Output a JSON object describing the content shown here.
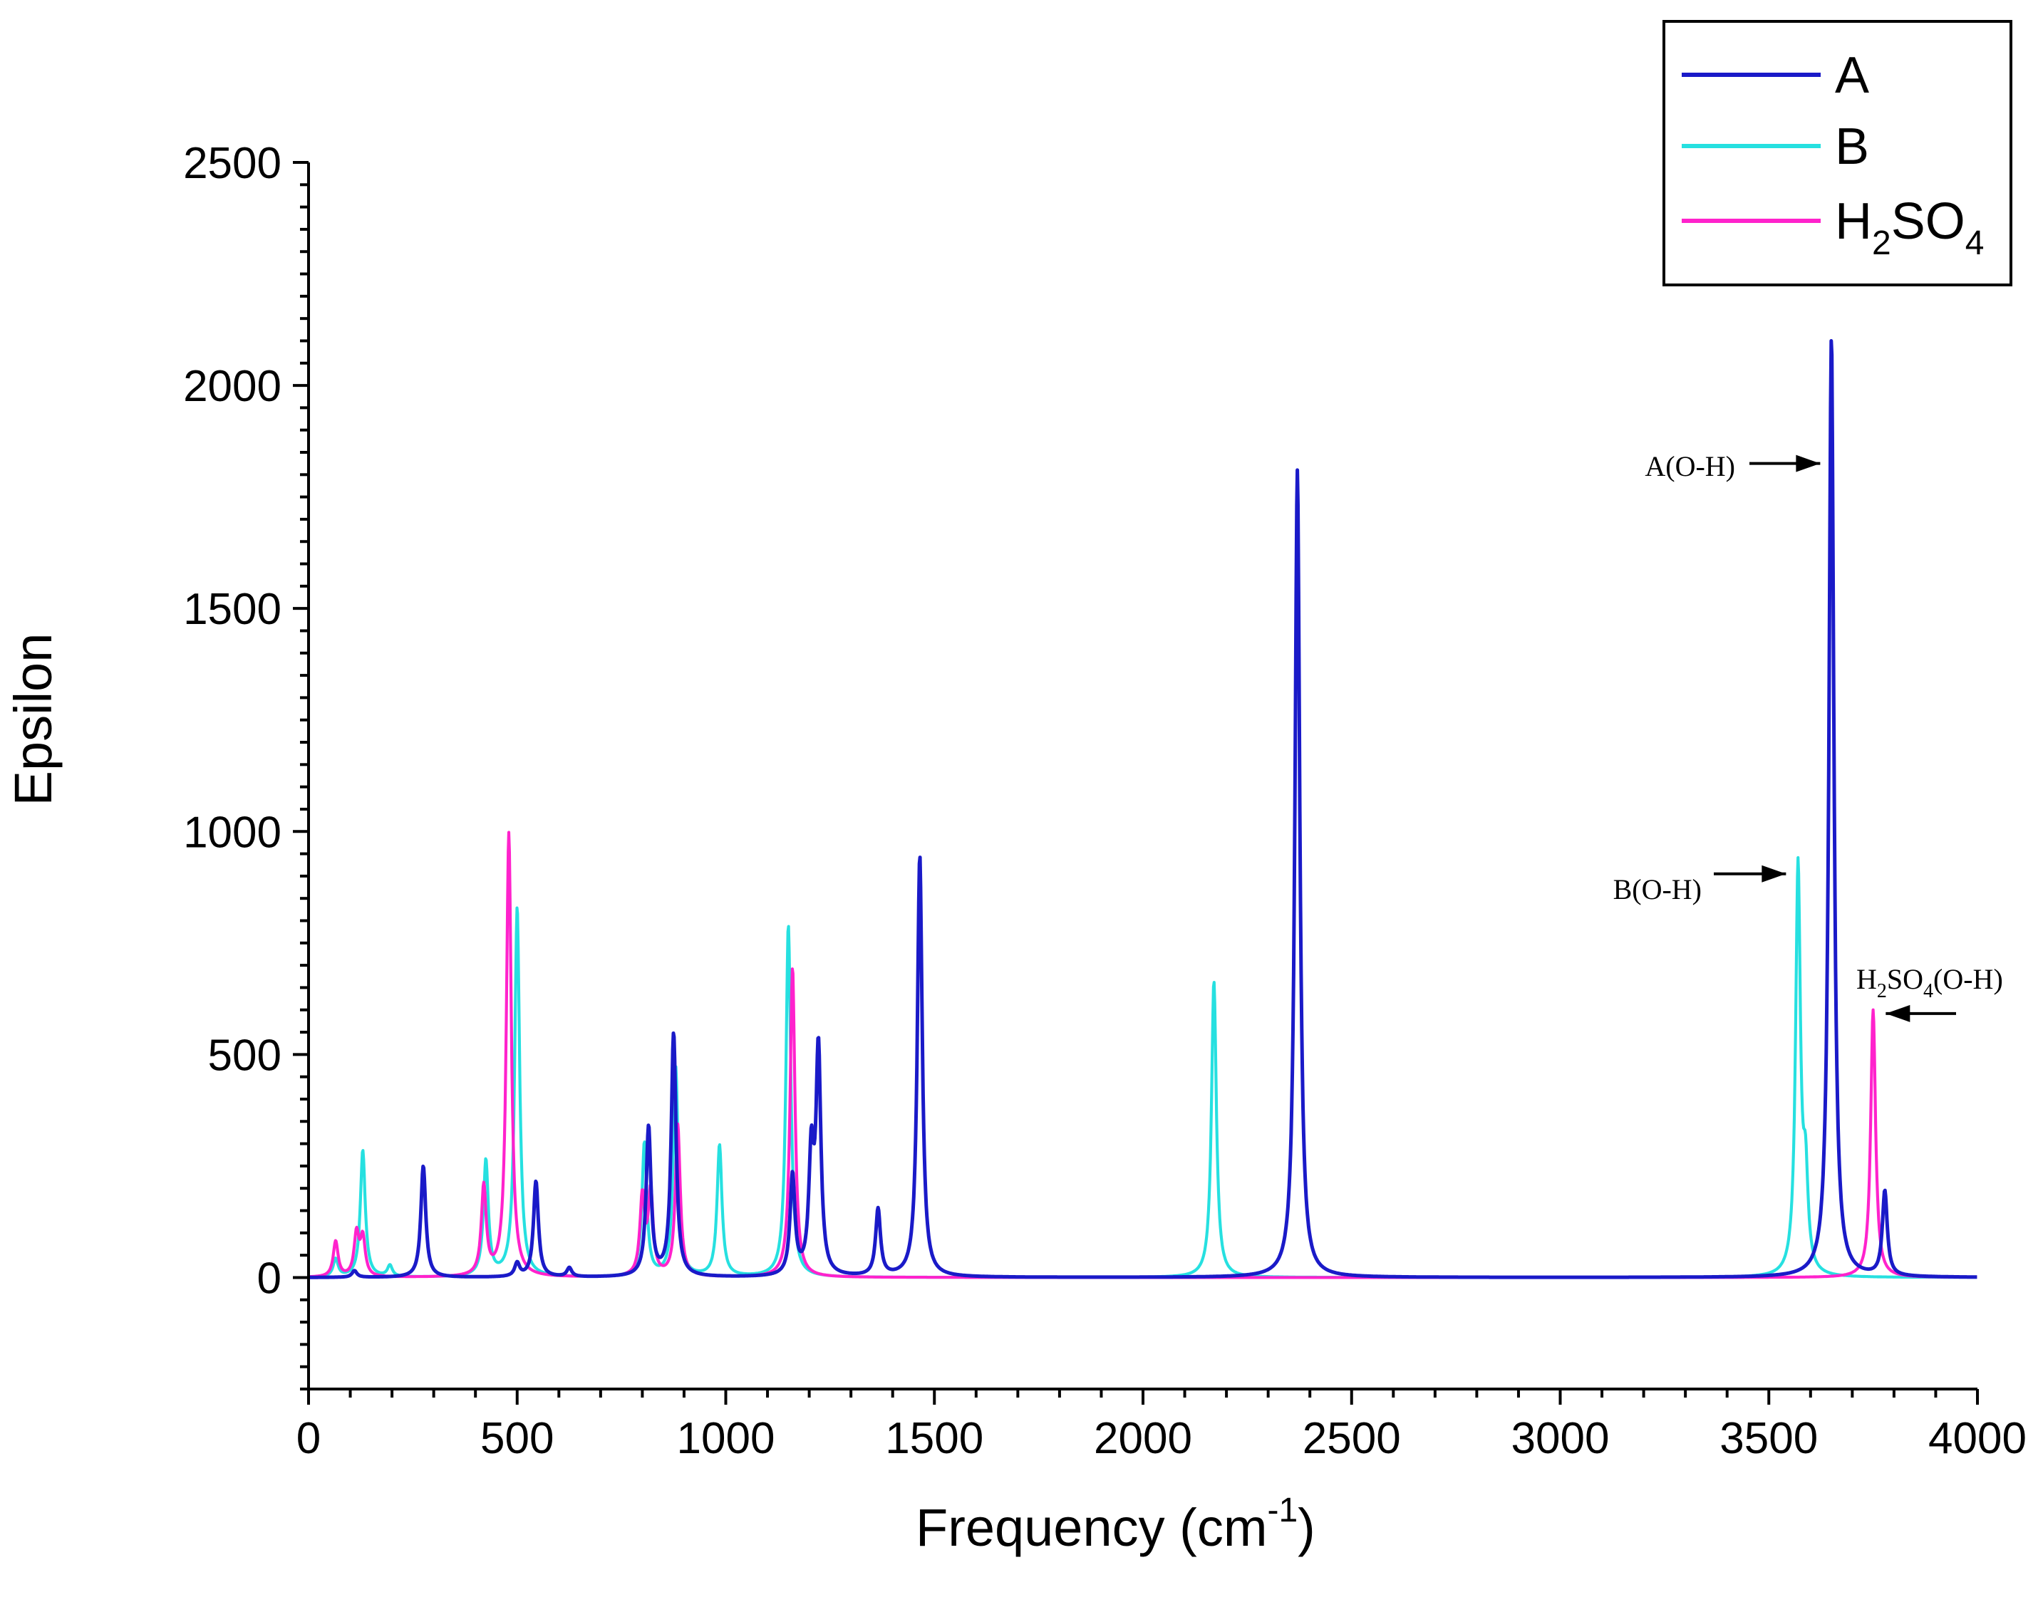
{
  "chart_data": {
    "type": "line",
    "title": "",
    "xlabel": "Frequency (cm",
    "xlabel_sup": "-1",
    "xlabel_tail": ")",
    "ylabel": "Epsilon",
    "xlim": [
      0,
      4000
    ],
    "ylim": [
      -250,
      2500
    ],
    "xticks": [
      0,
      500,
      1000,
      1500,
      2000,
      2500,
      3000,
      3500,
      4000
    ],
    "yticks": [
      0,
      500,
      1000,
      1500,
      2000,
      2500
    ],
    "legend": {
      "position": "top-right",
      "entries": [
        {
          "label": "A",
          "color": "#1a1ac8"
        },
        {
          "label": "B",
          "color": "#26e0e0"
        },
        {
          "label_main": "H",
          "label_sub1": "2",
          "label_mid": "SO",
          "label_sub2": "4",
          "color": "#ff22cc"
        }
      ]
    },
    "series": [
      {
        "name": "A",
        "color": "#1a1ac8",
        "width": 12,
        "peaks": [
          [
            110,
            15
          ],
          [
            275,
            250
          ],
          [
            500,
            30
          ],
          [
            545,
            215
          ],
          [
            625,
            20
          ],
          [
            815,
            335
          ],
          [
            875,
            545
          ],
          [
            1160,
            225
          ],
          [
            1205,
            260
          ],
          [
            1222,
            500
          ],
          [
            1365,
            150
          ],
          [
            1465,
            945
          ],
          [
            2370,
            1810
          ],
          [
            3650,
            2110
          ],
          [
            3778,
            190
          ]
        ]
      },
      {
        "name": "B",
        "color": "#26e0e0",
        "width": 10,
        "peaks": [
          [
            65,
            40
          ],
          [
            130,
            285
          ],
          [
            195,
            25
          ],
          [
            425,
            260
          ],
          [
            500,
            830
          ],
          [
            805,
            300
          ],
          [
            880,
            470
          ],
          [
            985,
            295
          ],
          [
            1150,
            790
          ],
          [
            2170,
            665
          ],
          [
            3570,
            915
          ],
          [
            3588,
            200
          ]
        ]
      },
      {
        "name": "H2SO4",
        "color": "#ff22cc",
        "width": 10,
        "peaks": [
          [
            65,
            80
          ],
          [
            115,
            95
          ],
          [
            130,
            85
          ],
          [
            420,
            200
          ],
          [
            480,
            995
          ],
          [
            800,
            175
          ],
          [
            820,
            185
          ],
          [
            885,
            340
          ],
          [
            1160,
            695
          ],
          [
            3750,
            600
          ]
        ]
      }
    ],
    "annotations": [
      {
        "text": "A(O-H)",
        "arrow": "right",
        "x": 3630,
        "y": 1825
      },
      {
        "text": "B(O-H)",
        "arrow": "right",
        "x": 3548,
        "y": 905
      },
      {
        "text_main": "H",
        "text_sub1": "2",
        "text_mid": "SO",
        "text_sub2": "4",
        "text_tail": "(O-H)",
        "arrow": "left",
        "x": 3770,
        "y": 595
      }
    ]
  }
}
